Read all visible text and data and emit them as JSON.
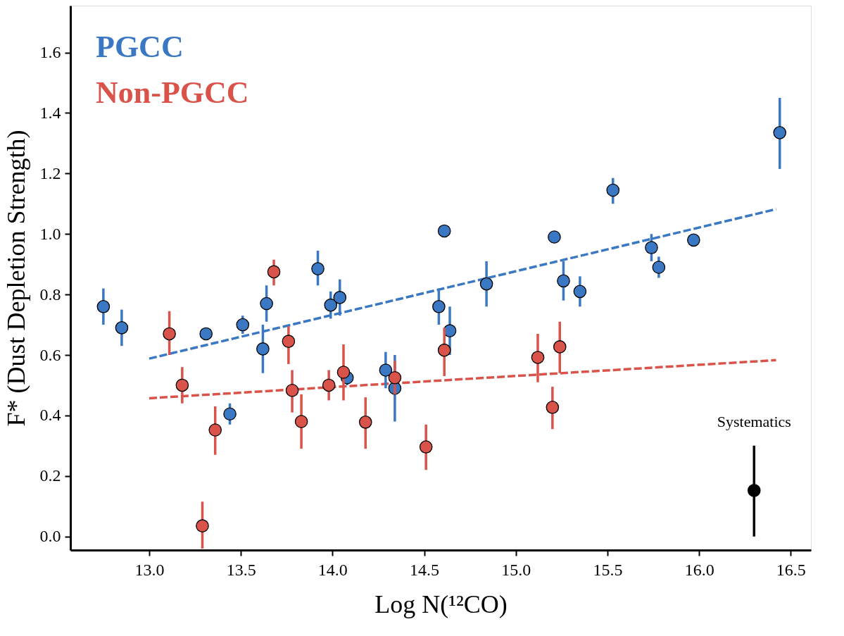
{
  "chart_data": {
    "type": "scatter",
    "xlabel": "Log N(¹²CO)",
    "ylabel": "F* (Dust Depletion Strength)",
    "xlim": [
      12.57,
      16.61
    ],
    "ylim": [
      -0.045,
      1.755
    ],
    "xticks": [
      {
        "value": 13,
        "label": "13.0"
      },
      {
        "value": 13.5,
        "label": "13.5"
      },
      {
        "value": 14,
        "label": "14.0"
      },
      {
        "value": 14.5,
        "label": "14.5"
      },
      {
        "value": 15,
        "label": "15.0"
      },
      {
        "value": 15.5,
        "label": "15.5"
      },
      {
        "value": 16,
        "label": "16.0"
      },
      {
        "value": 16.5,
        "label": "16.5"
      }
    ],
    "yticks": [
      {
        "value": 0,
        "label": "0.0"
      },
      {
        "value": 0.2,
        "label": "0.2"
      },
      {
        "value": 0.4,
        "label": "0.4"
      },
      {
        "value": 0.6,
        "label": "0.6"
      },
      {
        "value": 0.8,
        "label": "0.8"
      },
      {
        "value": 1,
        "label": "1.0"
      },
      {
        "value": 1.2,
        "label": "1.2"
      },
      {
        "value": 1.4,
        "label": "1.4"
      },
      {
        "value": 1.6,
        "label": "1.6"
      }
    ],
    "grid": false,
    "legend": "top left",
    "annotations": [
      {
        "text": "Systematics",
        "x": 16.3,
        "y": 0.3
      }
    ],
    "series": [
      {
        "name": "PGCC",
        "marker": "circle",
        "color": "#3a78c3",
        "x": [
          12.75,
          12.85,
          13.31,
          13.51,
          13.44,
          13.62,
          13.64,
          13.92,
          13.99,
          14.04,
          14.08,
          14.29,
          14.34,
          14.58,
          14.61,
          14.64,
          14.84,
          15.21,
          15.26,
          15.35,
          15.53,
          15.74,
          15.78,
          15.97,
          16.44
        ],
        "values": [
          0.76,
          0.69,
          0.67,
          0.7,
          0.405,
          0.62,
          0.77,
          0.885,
          0.765,
          0.79,
          0.525,
          0.55,
          0.49,
          0.76,
          1.01,
          0.68,
          0.835,
          0.99,
          0.845,
          0.81,
          1.145,
          0.955,
          0.89,
          0.98,
          1.335
        ],
        "errors": [
          [
            0.7,
            0.82
          ],
          [
            0.63,
            0.75
          ],
          null,
          [
            0.67,
            0.73
          ],
          [
            0.37,
            0.44
          ],
          [
            0.54,
            0.7
          ],
          [
            0.71,
            0.83
          ],
          [
            0.83,
            0.945
          ],
          [
            0.72,
            0.81
          ],
          [
            0.73,
            0.85
          ],
          [
            0.5,
            0.55
          ],
          [
            0.49,
            0.61
          ],
          [
            0.38,
            0.6
          ],
          [
            0.7,
            0.82
          ],
          null,
          [
            0.6,
            0.76
          ],
          [
            0.76,
            0.91
          ],
          null,
          [
            0.78,
            0.91
          ],
          [
            0.76,
            0.86
          ],
          [
            1.1,
            1.185
          ],
          [
            0.91,
            1.0
          ],
          [
            0.855,
            0.925
          ],
          null,
          [
            1.215,
            1.45
          ]
        ]
      },
      {
        "name": "Non-PGCC",
        "marker": "circle",
        "color": "#d9534a",
        "x": [
          13.11,
          13.18,
          13.29,
          13.36,
          13.68,
          13.76,
          13.78,
          13.83,
          13.98,
          14.06,
          14.18,
          14.34,
          14.51,
          14.61,
          15.12,
          15.2,
          15.24
        ],
        "values": [
          0.67,
          0.5,
          0.035,
          0.352,
          0.875,
          0.645,
          0.483,
          0.38,
          0.5,
          0.543,
          0.378,
          0.525,
          0.296,
          0.616,
          0.592,
          0.427,
          0.627
        ],
        "errors": [
          [
            0.6,
            0.745
          ],
          [
            0.44,
            0.56
          ],
          [
            -0.04,
            0.115
          ],
          [
            0.27,
            0.43
          ],
          [
            0.83,
            0.915
          ],
          [
            0.57,
            0.695
          ],
          [
            0.41,
            0.55
          ],
          [
            0.29,
            0.47
          ],
          [
            0.45,
            0.55
          ],
          [
            0.45,
            0.635
          ],
          [
            0.29,
            0.46
          ],
          [
            0.47,
            0.58
          ],
          [
            0.22,
            0.37
          ],
          [
            0.53,
            0.69
          ],
          [
            0.51,
            0.67
          ],
          [
            0.355,
            0.495
          ],
          [
            0.54,
            0.71
          ]
        ]
      },
      {
        "type": "line",
        "marker": "none",
        "color": "#3a78c3",
        "line_style": "dashed",
        "x": [
          13.0,
          16.42
        ],
        "values": [
          0.588,
          1.082
        ]
      },
      {
        "type": "line",
        "marker": "none",
        "color": "#d9534a",
        "line_style": "dashed",
        "x": [
          13.0,
          16.42
        ],
        "values": [
          0.457,
          0.583
        ]
      },
      {
        "marker": "circle",
        "color": "#000000",
        "x": [
          16.3
        ],
        "values": [
          0.152
        ],
        "errors": [
          [
            0.0,
            0.3
          ]
        ]
      }
    ]
  }
}
